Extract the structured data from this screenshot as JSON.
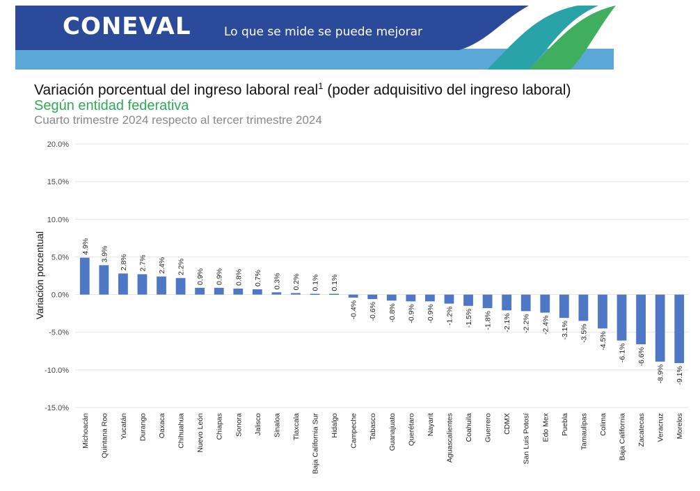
{
  "header": {
    "brand": "CONEVAL",
    "tagline": "Lo que se mide se puede mejorar",
    "colors": {
      "navy": "#2b4a9a",
      "light_blue": "#5aa7d8",
      "teal": "#2aa3a8",
      "green": "#3fae5e"
    }
  },
  "titles": {
    "main": "Variación porcentual del ingreso laboral real",
    "footnote_mark": "1",
    "main_suffix": " (poder adquisitivo del ingreso laboral)",
    "subtitle": "Según entidad federativa",
    "period": "Cuarto trimestre 2024 respecto al tercer trimestre 2024"
  },
  "chart_data": {
    "type": "bar",
    "title": "Variación porcentual del ingreso laboral real (poder adquisitivo del ingreso laboral)",
    "ylabel": "Variación porcentual",
    "xlabel": "",
    "ylim": [
      -15,
      20
    ],
    "yticks": [
      "20.0%",
      "15.0%",
      "10.0%",
      "5.0%",
      "0.0%",
      "-5.0%",
      "-10.0%",
      "-15.0%"
    ],
    "ytick_values": [
      20,
      15,
      10,
      5,
      0,
      -5,
      -10,
      -15
    ],
    "grid": true,
    "bar_color": "#4e77c5",
    "categories": [
      "Michoacán",
      "Quintana Roo",
      "Yucatán",
      "Durango",
      "Oaxaca",
      "Chihuahua",
      "Nuevo León",
      "Chiapas",
      "Sonora",
      "Jalisco",
      "Sinaloa",
      "Tlaxcala",
      "Baja California Sur",
      "Hidalgo",
      "Campeche",
      "Tabasco",
      "Guanajuato",
      "Querétaro",
      "Nayarit",
      "Aguascalientes",
      "Coahuila",
      "Guerrero",
      "CDMX",
      "San Luis Potosí",
      "Edo Mex",
      "Puebla",
      "Tamaulipas",
      "Colima",
      "Baja California",
      "Zacatecas",
      "Veracruz",
      "Morelos"
    ],
    "values": [
      4.9,
      3.9,
      2.8,
      2.7,
      2.4,
      2.2,
      0.9,
      0.9,
      0.8,
      0.7,
      0.3,
      0.2,
      0.1,
      0.1,
      -0.4,
      -0.6,
      -0.8,
      -0.9,
      -0.9,
      -1.2,
      -1.5,
      -1.8,
      -2.1,
      -2.2,
      -2.4,
      -3.1,
      -3.5,
      -4.5,
      -6.1,
      -6.6,
      -8.9,
      -9.1
    ],
    "data_labels": [
      "4.9%",
      "3.9%",
      "2.8%",
      "2.7%",
      "2.4%",
      "2.2%",
      "0.9%",
      "0.9%",
      "0.8%",
      "0.7%",
      "0.3%",
      "0.2%",
      "0.1%",
      "0.1%",
      "-0.4%",
      "-0.6%",
      "-0.8%",
      "-0.9%",
      "-0.9%",
      "-1.2%",
      "-1.5%",
      "-1.8%",
      "-2.1%",
      "-2.2%",
      "-2.4%",
      "-3.1%",
      "-3.5%",
      "-4.5%",
      "-6.1%",
      "-6.6%",
      "-8.9%",
      "-9.1%"
    ]
  }
}
